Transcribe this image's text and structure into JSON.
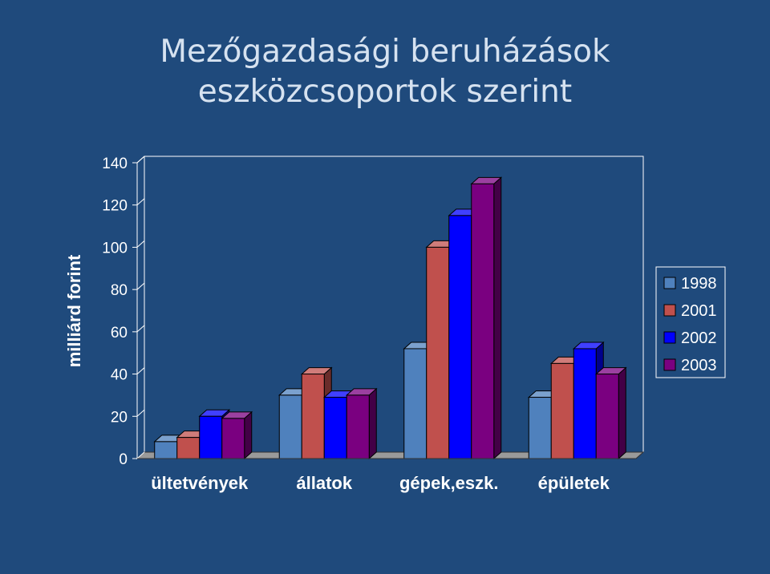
{
  "title": "Mezőgazdasági beruházások eszközcsoportok szerint",
  "chart_data": {
    "type": "bar",
    "title": "Mezőgazdasági beruházások eszközcsoportok szerint",
    "ylabel": "milliárd forint",
    "xlabel": "",
    "ylim": [
      0,
      140
    ],
    "yticks": [
      "0",
      "20",
      "40",
      "60",
      "80",
      "100",
      "120",
      "140"
    ],
    "categories": [
      "ültetvények",
      "állatok",
      "gépek,eszk.",
      "épületek"
    ],
    "series": [
      {
        "name": "1998",
        "color": "#4f81bd",
        "values": [
          8,
          30,
          52,
          29
        ]
      },
      {
        "name": "2001",
        "color": "#c0504d",
        "values": [
          10,
          40,
          100,
          45
        ]
      },
      {
        "name": "2002",
        "color": "#0000ff",
        "values": [
          20,
          29,
          115,
          52
        ]
      },
      {
        "name": "2003",
        "color": "#7a0080",
        "values": [
          19,
          30,
          130,
          40
        ]
      }
    ],
    "legend": "right",
    "grid": false
  }
}
